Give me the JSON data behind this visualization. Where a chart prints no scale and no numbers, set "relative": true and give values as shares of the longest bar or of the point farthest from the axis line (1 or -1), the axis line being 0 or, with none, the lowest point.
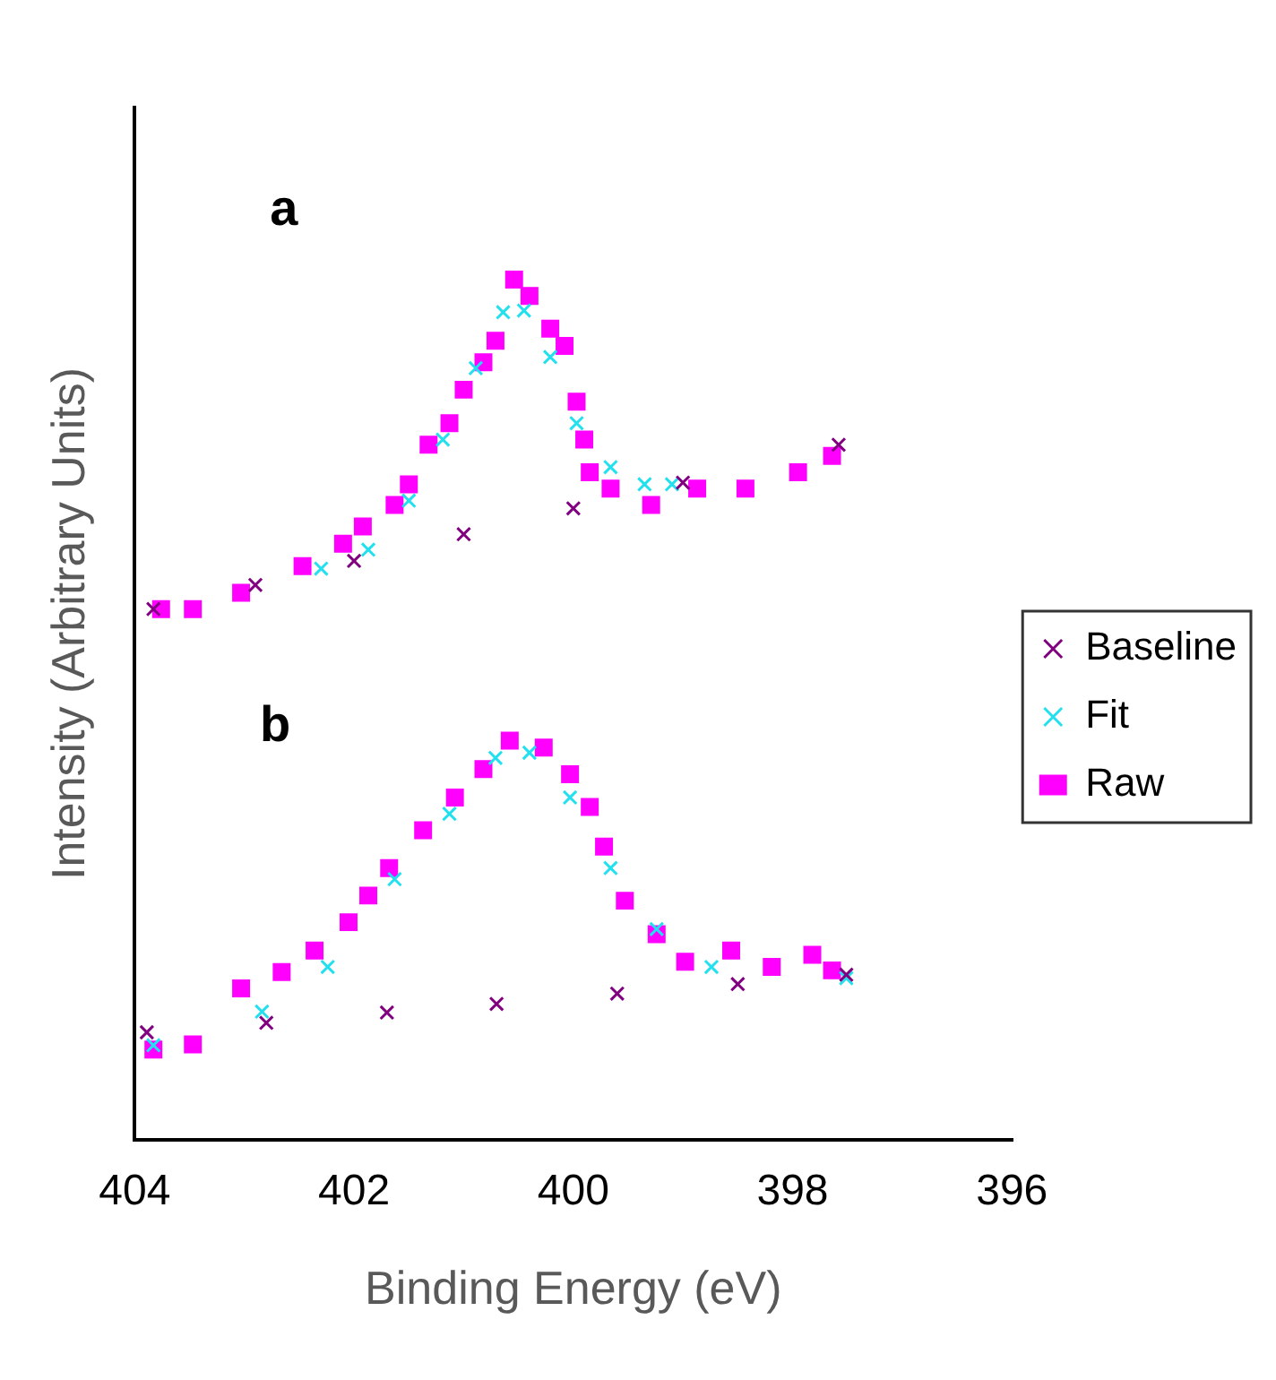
{
  "chart_data": {
    "type": "scatter",
    "xlabel": "Binding Energy (eV)",
    "ylabel": "Intensity (Arbitrary Units)",
    "relative": true,
    "xlim": [
      404,
      396
    ],
    "xticks": [
      404,
      402,
      400,
      398,
      396
    ],
    "grid": false,
    "legend": "right",
    "annotations": [
      "a",
      "b"
    ],
    "series": [
      {
        "name": "Raw",
        "color": "#ff00ff",
        "marker": "square",
        "x": [
          403.76,
          403.47,
          403.03,
          402.47,
          402.1,
          401.92,
          401.63,
          401.5,
          401.32,
          401.13,
          401.0,
          400.82,
          400.71,
          400.54,
          400.4,
          400.21,
          400.08,
          399.97,
          399.9,
          399.85,
          399.66,
          399.29,
          398.87,
          398.43,
          397.95,
          397.64,
          403.83,
          403.47,
          403.03,
          402.66,
          402.36,
          402.05,
          401.87,
          401.68,
          401.37,
          401.08,
          400.82,
          400.58,
          400.27,
          400.03,
          399.85,
          399.72,
          399.53,
          399.24,
          398.98,
          398.56,
          398.19,
          397.82,
          397.64
        ],
        "values": [
          0.617,
          0.617,
          0.636,
          0.667,
          0.693,
          0.713,
          0.738,
          0.762,
          0.808,
          0.833,
          0.872,
          0.904,
          0.929,
          1,
          0.981,
          0.943,
          0.923,
          0.858,
          0.814,
          0.776,
          0.757,
          0.738,
          0.757,
          0.757,
          0.776,
          0.795,
          0.105,
          0.111,
          0.176,
          0.195,
          0.22,
          0.253,
          0.284,
          0.316,
          0.36,
          0.398,
          0.431,
          0.464,
          0.456,
          0.425,
          0.387,
          0.341,
          0.278,
          0.239,
          0.207,
          0.22,
          0.201,
          0.215,
          0.197
        ]
      },
      {
        "name": "Fit",
        "color": "#22e0ee",
        "marker": "cross",
        "x": [
          402.3,
          401.87,
          401.5,
          401.19,
          400.89,
          400.64,
          400.45,
          400.21,
          399.97,
          399.66,
          399.35,
          399.1,
          403.83,
          402.84,
          402.24,
          401.63,
          401.13,
          400.71,
          400.4,
          400.03,
          399.66,
          399.24,
          398.74,
          397.51
        ],
        "values": [
          0.664,
          0.686,
          0.743,
          0.814,
          0.897,
          0.962,
          0.964,
          0.91,
          0.833,
          0.782,
          0.762,
          0.762,
          0.11,
          0.149,
          0.201,
          0.303,
          0.379,
          0.444,
          0.45,
          0.398,
          0.316,
          0.245,
          0.201,
          0.188
        ]
      },
      {
        "name": "Baseline",
        "color": "#800080",
        "marker": "cross",
        "x": [
          403.83,
          402.9,
          402,
          401,
          400,
          399,
          397.58,
          403.89,
          402.8,
          401.7,
          400.7,
          399.6,
          398.5,
          397.51
        ],
        "values": [
          0.617,
          0.645,
          0.673,
          0.704,
          0.734,
          0.764,
          0.808,
          0.125,
          0.136,
          0.148,
          0.158,
          0.17,
          0.181,
          0.192
        ]
      }
    ]
  }
}
